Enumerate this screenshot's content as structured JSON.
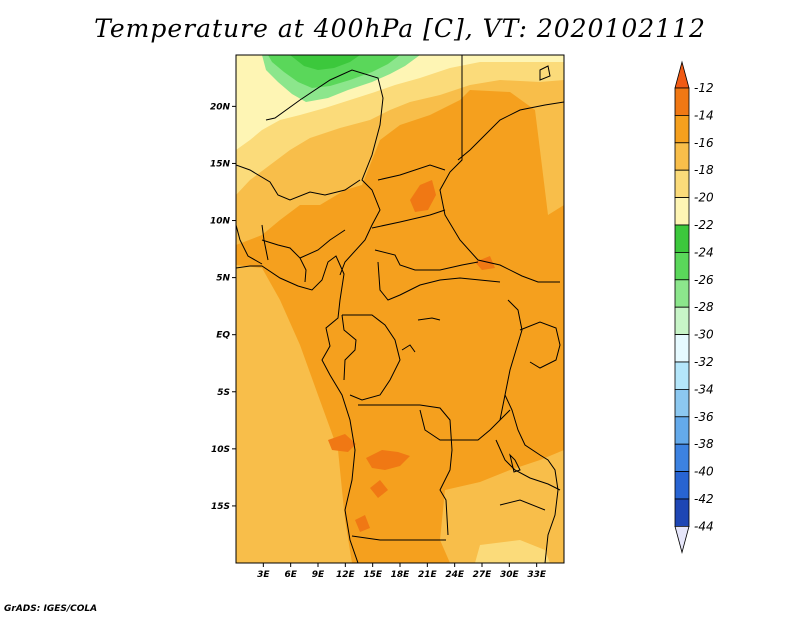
{
  "title": "Temperature at 400hPa [C], VT: 2020102112",
  "footer": "GrADS: IGES/COLA",
  "map": {
    "lon_range": [
      0,
      36
    ],
    "lat_range": [
      -20,
      24.5
    ],
    "x_ticks": [
      {
        "lon": 3,
        "label": "3E"
      },
      {
        "lon": 6,
        "label": "6E"
      },
      {
        "lon": 9,
        "label": "9E"
      },
      {
        "lon": 12,
        "label": "12E"
      },
      {
        "lon": 15,
        "label": "15E"
      },
      {
        "lon": 18,
        "label": "18E"
      },
      {
        "lon": 21,
        "label": "21E"
      },
      {
        "lon": 24,
        "label": "24E"
      },
      {
        "lon": 27,
        "label": "27E"
      },
      {
        "lon": 30,
        "label": "30E"
      },
      {
        "lon": 33,
        "label": "33E"
      }
    ],
    "y_ticks": [
      {
        "lat": 20,
        "label": "20N"
      },
      {
        "lat": 15,
        "label": "15N"
      },
      {
        "lat": 10,
        "label": "10N"
      },
      {
        "lat": 5,
        "label": "5N"
      },
      {
        "lat": 0,
        "label": "EQ"
      },
      {
        "lat": -5,
        "label": "5S"
      },
      {
        "lat": -10,
        "label": "10S"
      },
      {
        "lat": -15,
        "label": "15S"
      }
    ]
  },
  "colorbar": {
    "top_color": "#f05a14",
    "bottom_color": "#e6e6fa",
    "levels": [
      {
        "label": "-12",
        "color": "#f07814"
      },
      {
        "label": "-14",
        "color": "#f5a01e"
      },
      {
        "label": "-16",
        "color": "#f8be4a"
      },
      {
        "label": "-18",
        "color": "#fbdb7a"
      },
      {
        "label": "-20",
        "color": "#fef5b4"
      },
      {
        "label": "-22",
        "color": "#3cc83c"
      },
      {
        "label": "-24",
        "color": "#5ad75a"
      },
      {
        "label": "-26",
        "color": "#8ce68c"
      },
      {
        "label": "-28",
        "color": "#c8f5c8"
      },
      {
        "label": "-30",
        "color": "#e6faff"
      },
      {
        "label": "-32",
        "color": "#b4e6fa"
      },
      {
        "label": "-34",
        "color": "#8cc8f0"
      },
      {
        "label": "-36",
        "color": "#64aaeb"
      },
      {
        "label": "-38",
        "color": "#3c82e1"
      },
      {
        "label": "-40",
        "color": "#2864d2"
      },
      {
        "label": "-42",
        "color": "#1e46b4"
      },
      {
        "label": "-44",
        "color": "#0f0f78"
      }
    ]
  }
}
